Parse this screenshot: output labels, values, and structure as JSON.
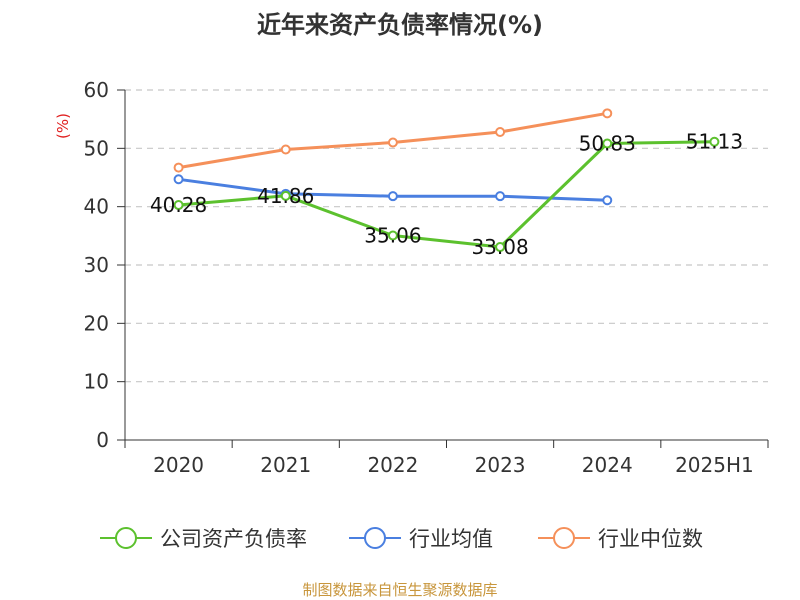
{
  "chart_data": {
    "type": "line",
    "title": "近年来资产负债率情况(%)",
    "ylabel": "(%)",
    "xlabel": "",
    "ylim": [
      0,
      60
    ],
    "yticks": [
      0,
      10,
      20,
      30,
      40,
      50,
      60
    ],
    "categories": [
      "2020",
      "2021",
      "2022",
      "2023",
      "2024",
      "2025H1"
    ],
    "grid": true,
    "legend_position": "bottom",
    "series": [
      {
        "name": "公司资产负债率",
        "color": "#5cc12e",
        "values": [
          40.28,
          41.86,
          35.06,
          33.08,
          50.83,
          51.13
        ],
        "labels": [
          "40.28",
          "41.86",
          "35.06",
          "33.08",
          "50.83",
          "51.13"
        ]
      },
      {
        "name": "行业均值",
        "color": "#4a7fe0",
        "values": [
          44.7,
          42.2,
          41.8,
          41.8,
          41.1,
          null
        ]
      },
      {
        "name": "行业中位数",
        "color": "#f5905a",
        "values": [
          46.7,
          49.8,
          51.0,
          52.8,
          56.0,
          null
        ]
      }
    ],
    "source": "制图数据来自恒生聚源数据库"
  }
}
